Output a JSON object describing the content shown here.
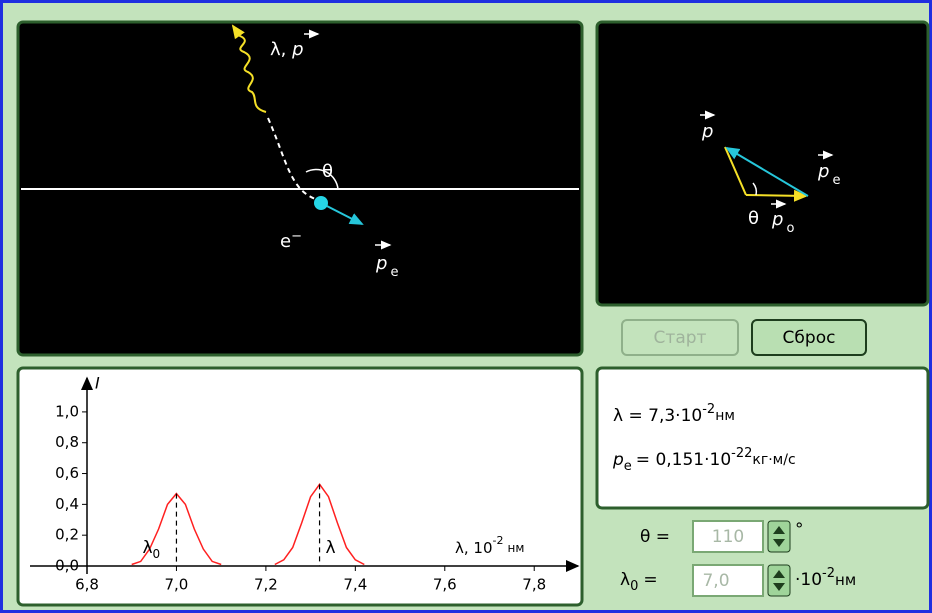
{
  "scattering_view": {
    "photon_label": "λ,",
    "photon_momentum": "p",
    "angle": "θ",
    "electron": "e",
    "electron_charge": "−",
    "electron_momentum": "p",
    "electron_momentum_sub": "e"
  },
  "momentum_diagram": {
    "p": "p",
    "pe": "p",
    "pe_sub": "e",
    "theta": "θ",
    "p0": "p",
    "p0_sub": "o"
  },
  "buttons": {
    "start": "Старт",
    "reset": "Сброс"
  },
  "results": {
    "lambda": {
      "label": "λ =",
      "value": "7,3",
      "factor": "·10",
      "exponent": "-2",
      "unit": "нм"
    },
    "pe": {
      "label": "p",
      "label_sub": "e",
      "equals": "=",
      "value": "0,151",
      "factor": "·10",
      "exponent": "-22",
      "unit": "кг·м/с"
    }
  },
  "controls": {
    "theta": {
      "label": "θ =",
      "value": "110",
      "unit": "°"
    },
    "lambda0": {
      "label": "λ",
      "label_sub": "0",
      "equals": "=",
      "value": "7,0",
      "factor": "·10",
      "exponent": "-2",
      "unit": "нм"
    }
  },
  "chart_data": {
    "type": "line",
    "y_label": "I",
    "x_label": "λ, 10",
    "x_label_exp": "-2",
    "x_label_unit": "нм",
    "xlim": [
      6.8,
      7.88
    ],
    "ylim": [
      0,
      1.22
    ],
    "xticks": [
      {
        "value": 6.8,
        "label": "6,8"
      },
      {
        "value": 7.0,
        "label": "7,0"
      },
      {
        "value": 7.2,
        "label": "7,2"
      },
      {
        "value": 7.4,
        "label": "7,4"
      },
      {
        "value": 7.6,
        "label": "7,6"
      },
      {
        "value": 7.8,
        "label": "7,8"
      }
    ],
    "yticks": [
      {
        "value": 0,
        "label": "0,0"
      },
      {
        "value": 0.2,
        "label": "0,2"
      },
      {
        "value": 0.4,
        "label": "0,4"
      },
      {
        "value": 0.6,
        "label": "0,6"
      },
      {
        "value": 0.8,
        "label": "0,8"
      },
      {
        "value": 1.0,
        "label": "1,0"
      }
    ],
    "series": [
      {
        "color": "#ff2020",
        "label": "λ",
        "label_sub": "0",
        "x": [
          6.9,
          6.92,
          6.94,
          6.96,
          6.98,
          7.0,
          7.02,
          7.04,
          7.06,
          7.08,
          7.1
        ],
        "values": [
          0.01,
          0.03,
          0.11,
          0.24,
          0.4,
          0.47,
          0.4,
          0.24,
          0.11,
          0.03,
          0.01
        ]
      },
      {
        "color": "#ff2020",
        "label": "λ",
        "x": [
          7.22,
          7.24,
          7.26,
          7.28,
          7.3,
          7.32,
          7.34,
          7.36,
          7.38,
          7.4,
          7.42
        ],
        "values": [
          0.01,
          0.04,
          0.12,
          0.28,
          0.45,
          0.53,
          0.45,
          0.28,
          0.12,
          0.04,
          0.01
        ]
      }
    ]
  }
}
